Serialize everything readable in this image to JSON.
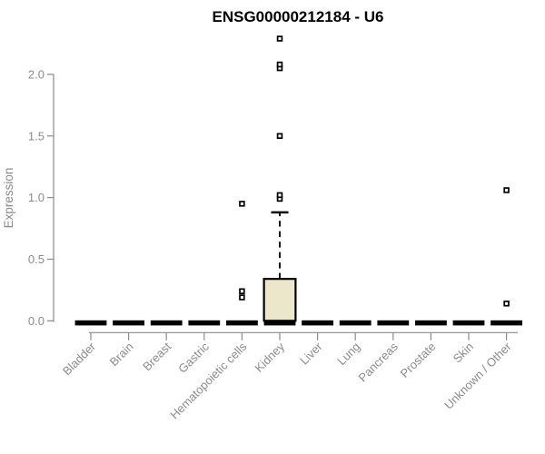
{
  "chart_data": {
    "type": "boxplot",
    "title": "ENSG00000212184 - U6",
    "xlabel": "",
    "ylabel": "Expression",
    "ylim": [
      -0.09,
      2.35
    ],
    "grid": false,
    "legend": null,
    "yticks": [
      {
        "value": 0.0,
        "label": "0.0"
      },
      {
        "value": 0.5,
        "label": "0.5"
      },
      {
        "value": 1.0,
        "label": "1.0"
      },
      {
        "value": 1.5,
        "label": "1.5"
      },
      {
        "value": 2.0,
        "label": "2.0"
      }
    ],
    "categories": [
      "Bladder",
      "Brain",
      "Breast",
      "Gastric",
      "Hematopoietic cells",
      "Kidney",
      "Liver",
      "Lung",
      "Pancreas",
      "Prostate",
      "Skin",
      "Unknown / Other"
    ],
    "series": [
      {
        "category": "Bladder",
        "slug": "bladder",
        "whisker_low": 0,
        "q1": 0,
        "median": 0,
        "q3": 0,
        "whisker_high": 0,
        "outliers": []
      },
      {
        "category": "Brain",
        "slug": "brain",
        "whisker_low": 0,
        "q1": 0,
        "median": 0,
        "q3": 0,
        "whisker_high": 0,
        "outliers": []
      },
      {
        "category": "Breast",
        "slug": "breast",
        "whisker_low": 0,
        "q1": 0,
        "median": 0,
        "q3": 0,
        "whisker_high": 0,
        "outliers": []
      },
      {
        "category": "Gastric",
        "slug": "gastric",
        "whisker_low": 0,
        "q1": 0,
        "median": 0,
        "q3": 0,
        "whisker_high": 0,
        "outliers": []
      },
      {
        "category": "Hematopoietic cells",
        "slug": "hematopoietic-cells",
        "whisker_low": 0,
        "q1": 0,
        "median": 0,
        "q3": 0,
        "whisker_high": 0,
        "outliers": [
          0.19,
          0.24,
          0.95
        ]
      },
      {
        "category": "Kidney",
        "slug": "kidney",
        "whisker_low": 0,
        "q1": 0,
        "median": 0,
        "q3": 0.34,
        "whisker_high": 0.88,
        "outliers": [
          0.99,
          1.02,
          1.5,
          2.05,
          2.08,
          2.29
        ]
      },
      {
        "category": "Liver",
        "slug": "liver",
        "whisker_low": 0,
        "q1": 0,
        "median": 0,
        "q3": 0,
        "whisker_high": 0,
        "outliers": []
      },
      {
        "category": "Lung",
        "slug": "lung",
        "whisker_low": 0,
        "q1": 0,
        "median": 0,
        "q3": 0,
        "whisker_high": 0,
        "outliers": []
      },
      {
        "category": "Pancreas",
        "slug": "pancreas",
        "whisker_low": 0,
        "q1": 0,
        "median": 0,
        "q3": 0,
        "whisker_high": 0,
        "outliers": []
      },
      {
        "category": "Prostate",
        "slug": "prostate",
        "whisker_low": 0,
        "q1": 0,
        "median": 0,
        "q3": 0,
        "whisker_high": 0,
        "outliers": []
      },
      {
        "category": "Skin",
        "slug": "skin",
        "whisker_low": 0,
        "q1": 0,
        "median": 0,
        "q3": 0,
        "whisker_high": 0,
        "outliers": []
      },
      {
        "category": "Unknown / Other",
        "slug": "unknown-other",
        "whisker_low": 0,
        "q1": 0,
        "median": 0,
        "q3": 0,
        "whisker_high": 0,
        "outliers": [
          0.14,
          1.06
        ]
      }
    ],
    "colors": {
      "axis": "#8b8b8b",
      "tick_label": "#8b8b8b",
      "box_fill": "#ece7cb",
      "box_stroke": "#000000",
      "median": "#000000",
      "outlier_fill": "#ffffff",
      "title": "#000000",
      "background": "#ffffff"
    }
  }
}
